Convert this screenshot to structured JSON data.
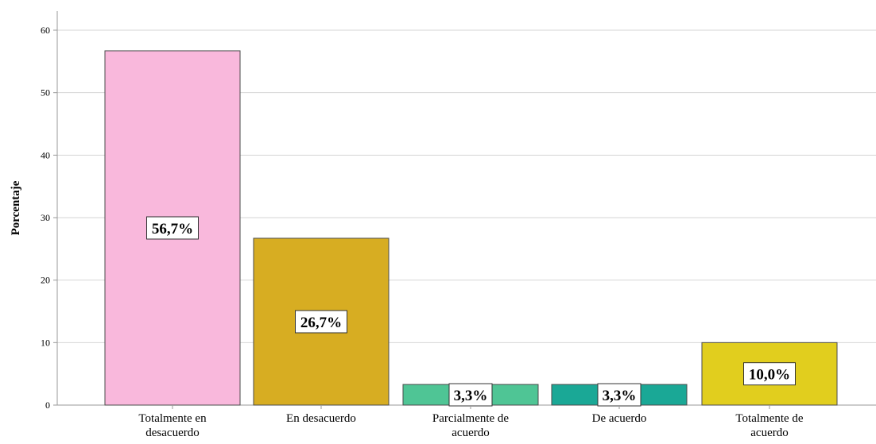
{
  "chart_data": {
    "type": "bar",
    "categories": [
      [
        "Totalmente en",
        "desacuerdo"
      ],
      [
        "En desacuerdo"
      ],
      [
        "Parcialmente de",
        "acuerdo"
      ],
      [
        "De acuerdo"
      ],
      [
        "Totalmente de",
        "acuerdo"
      ]
    ],
    "values": [
      56.7,
      26.7,
      3.3,
      3.3,
      10.0
    ],
    "data_labels": [
      "56,7%",
      "26,7%",
      "3,3%",
      "3,3%",
      "10,0%"
    ],
    "colors": [
      "#f9b8dc",
      "#d7ad22",
      "#4fc595",
      "#1aa896",
      "#e1ce1e"
    ],
    "ylabel": "Porcentaje",
    "xlabel": "",
    "ylim": [
      0,
      60
    ],
    "yticks": [
      0,
      10,
      20,
      30,
      40,
      50,
      60
    ],
    "grid": true
  }
}
